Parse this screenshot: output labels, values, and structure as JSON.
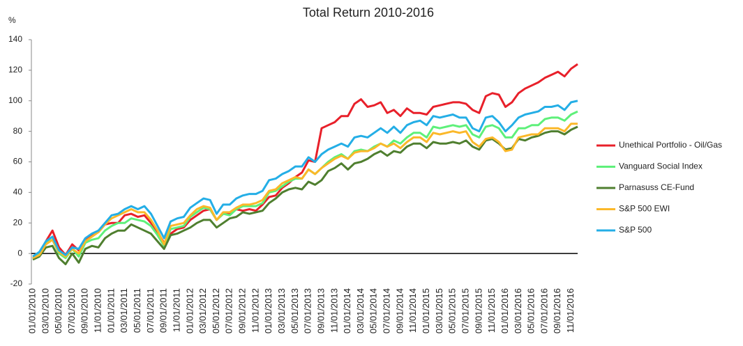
{
  "chart_data": {
    "type": "line",
    "title": "Total Return 2010-2016",
    "y_label": "%",
    "categories": [
      "01/01/2010",
      null,
      "03/01/2010",
      null,
      "05/01/2010",
      null,
      "07/01/2010",
      null,
      "09/01/2010",
      null,
      "11/01/2010",
      null,
      "01/01/2011",
      null,
      "03/01/2011",
      null,
      "05/01/2011",
      null,
      "07/01/2011",
      null,
      "09/01/2011",
      null,
      "11/01/2011",
      null,
      "01/01/2012",
      null,
      "03/01/2012",
      null,
      "05/01/2012",
      null,
      "07/01/2012",
      null,
      "09/01/2012",
      null,
      "11/01/2012",
      null,
      "01/01/2013",
      null,
      "03/01/2013",
      null,
      "05/01/2013",
      null,
      "07/01/2013",
      null,
      "09/01/2013",
      null,
      "11/01/2013",
      null,
      "01/01/2014",
      null,
      "03/01/2014",
      null,
      "05/01/2014",
      null,
      "07/01/2014",
      null,
      "09/01/2014",
      null,
      "11/01/2014",
      null,
      "01/01/2015",
      null,
      "03/01/2015",
      null,
      "05/01/2015",
      null,
      "07/01/2015",
      null,
      "09/01/2015",
      null,
      "11/01/2015",
      null,
      "01/01/2016",
      null,
      "03/01/2016",
      null,
      "05/01/2016",
      null,
      "07/01/2016",
      null,
      "09/01/2016",
      null,
      "11/01/2016",
      null
    ],
    "series": [
      {
        "name": "Unethical Portfolio - Oil/Gas",
        "color": "#e8202a",
        "values": [
          -3,
          0,
          8,
          15,
          4,
          -1,
          6,
          2,
          9,
          12,
          14,
          19,
          20,
          20,
          25,
          26,
          24,
          25,
          20,
          14,
          7,
          13,
          16,
          17,
          22,
          25,
          28,
          29,
          22,
          26,
          26,
          29,
          28,
          29,
          28,
          32,
          37,
          38,
          43,
          46,
          50,
          53,
          61,
          60,
          82,
          84,
          86,
          90,
          90,
          98,
          101,
          96,
          97,
          99,
          92,
          94,
          90,
          95,
          92,
          92,
          91,
          96,
          97,
          98,
          99,
          99,
          98,
          94,
          92,
          103,
          105,
          104,
          96,
          99,
          105,
          108,
          110,
          112,
          115,
          117,
          119,
          116,
          121,
          124
        ]
      },
      {
        "name": "Vanguard Social Index",
        "color": "#5ef07a",
        "values": [
          -3,
          0,
          7,
          9,
          0,
          -3,
          3,
          -2,
          7,
          9,
          10,
          15,
          18,
          20,
          20,
          23,
          22,
          21,
          18,
          12,
          5,
          16,
          17,
          18,
          24,
          27,
          30,
          29,
          22,
          26,
          25,
          29,
          31,
          31,
          31,
          33,
          40,
          41,
          44,
          47,
          49,
          49,
          55,
          52,
          56,
          60,
          63,
          65,
          62,
          67,
          68,
          67,
          70,
          72,
          70,
          74,
          72,
          76,
          79,
          79,
          76,
          83,
          82,
          83,
          84,
          83,
          84,
          78,
          76,
          83,
          84,
          82,
          76,
          76,
          82,
          82,
          84,
          84,
          88,
          89,
          89,
          87,
          91,
          93
        ]
      },
      {
        "name": "Parnasuss CE-Fund",
        "color": "#4f7f2f",
        "values": [
          -4,
          -2,
          4,
          5,
          -3,
          -7,
          0,
          -6,
          3,
          5,
          4,
          10,
          13,
          15,
          15,
          19,
          17,
          15,
          13,
          8,
          3,
          12,
          13,
          15,
          17,
          20,
          22,
          22,
          17,
          20,
          23,
          24,
          27,
          26,
          27,
          28,
          33,
          36,
          40,
          42,
          43,
          42,
          47,
          45,
          48,
          54,
          56,
          59,
          55,
          59,
          60,
          62,
          65,
          67,
          64,
          67,
          66,
          70,
          72,
          72,
          69,
          73,
          72,
          72,
          73,
          72,
          74,
          70,
          68,
          74,
          75,
          72,
          68,
          69,
          75,
          74,
          76,
          77,
          79,
          80,
          80,
          78,
          81,
          83
        ]
      },
      {
        "name": "S&P 500 EWI",
        "color": "#fbb829",
        "values": [
          -3,
          -1,
          6,
          9,
          1,
          -2,
          3,
          0,
          8,
          11,
          14,
          19,
          23,
          25,
          27,
          29,
          27,
          27,
          22,
          15,
          6,
          18,
          19,
          20,
          25,
          29,
          31,
          30,
          22,
          27,
          27,
          30,
          32,
          32,
          33,
          35,
          41,
          42,
          46,
          48,
          50,
          49,
          55,
          52,
          56,
          59,
          62,
          64,
          62,
          66,
          67,
          67,
          69,
          72,
          70,
          72,
          69,
          73,
          76,
          76,
          73,
          79,
          78,
          79,
          80,
          79,
          80,
          73,
          70,
          75,
          76,
          73,
          67,
          68,
          76,
          77,
          78,
          78,
          82,
          82,
          82,
          80,
          85,
          85
        ]
      },
      {
        "name": "S&P 500",
        "color": "#24aee6",
        "values": [
          -2,
          1,
          8,
          11,
          2,
          -1,
          4,
          3,
          10,
          13,
          15,
          20,
          25,
          26,
          29,
          31,
          29,
          31,
          26,
          18,
          10,
          21,
          23,
          24,
          30,
          33,
          36,
          35,
          26,
          32,
          32,
          36,
          38,
          39,
          39,
          41,
          48,
          49,
          52,
          54,
          57,
          57,
          63,
          60,
          65,
          68,
          70,
          72,
          70,
          76,
          77,
          76,
          79,
          82,
          79,
          83,
          79,
          84,
          86,
          87,
          84,
          90,
          89,
          90,
          91,
          89,
          89,
          82,
          80,
          89,
          90,
          86,
          80,
          84,
          89,
          91,
          92,
          93,
          96,
          96,
          97,
          94,
          99,
          100
        ]
      }
    ],
    "ylim": [
      -20,
      140
    ],
    "yticks": [
      -20,
      0,
      20,
      40,
      60,
      80,
      100,
      120,
      140
    ],
    "legend": "right"
  }
}
